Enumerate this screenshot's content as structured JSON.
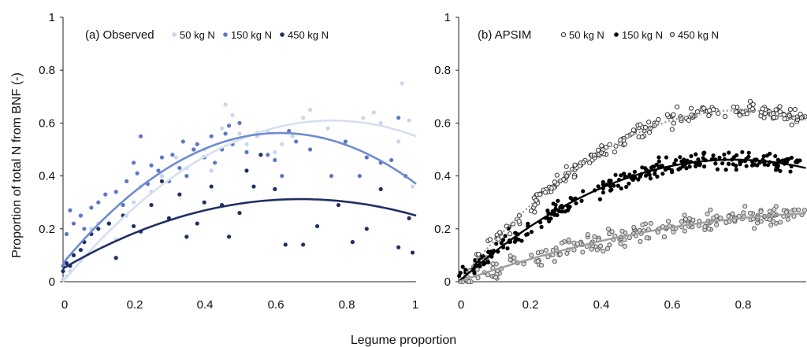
{
  "figure": {
    "xlabel": "Legume proportion",
    "ylabel": "Proportion of total N from BNF (-)"
  },
  "chart_data": [
    {
      "type": "scatter",
      "title": "(a) Observed",
      "xlabel": "Legume proportion",
      "ylabel": "Proportion of total N from BNF (-)",
      "xlim": [
        0,
        1
      ],
      "ylim": [
        0,
        1
      ],
      "x_ticks": [
        "0",
        "0.2",
        "0.4",
        "0.6",
        "0.8",
        "1"
      ],
      "y_ticks": [
        "0",
        "0.2",
        "0.4",
        "0.6",
        "0.8",
        "1"
      ],
      "grid": false,
      "legend_position": "top",
      "series": [
        {
          "name": "50 kg N",
          "color": "#c9d6ee",
          "marker": "filled-dot",
          "trend": {
            "type": "polynomial-2",
            "coef": [
              0.0,
              1.6,
              -1.05
            ]
          },
          "points": [
            [
              0.0,
              0.01
            ],
            [
              0.01,
              0.02
            ],
            [
              0.02,
              0.04
            ],
            [
              0.05,
              0.08
            ],
            [
              0.08,
              0.2
            ],
            [
              0.1,
              0.22
            ],
            [
              0.15,
              0.16
            ],
            [
              0.18,
              0.25
            ],
            [
              0.2,
              0.3
            ],
            [
              0.22,
              0.36
            ],
            [
              0.25,
              0.34
            ],
            [
              0.28,
              0.4
            ],
            [
              0.3,
              0.38
            ],
            [
              0.32,
              0.47
            ],
            [
              0.35,
              0.43
            ],
            [
              0.4,
              0.5
            ],
            [
              0.42,
              0.42
            ],
            [
              0.45,
              0.58
            ],
            [
              0.46,
              0.67
            ],
            [
              0.48,
              0.63
            ],
            [
              0.5,
              0.56
            ],
            [
              0.52,
              0.52
            ],
            [
              0.55,
              0.55
            ],
            [
              0.58,
              0.57
            ],
            [
              0.6,
              0.49
            ],
            [
              0.62,
              0.52
            ],
            [
              0.65,
              0.55
            ],
            [
              0.68,
              0.62
            ],
            [
              0.7,
              0.65
            ],
            [
              0.75,
              0.58
            ],
            [
              0.8,
              0.52
            ],
            [
              0.85,
              0.62
            ],
            [
              0.88,
              0.64
            ],
            [
              0.9,
              0.6
            ],
            [
              0.95,
              0.53
            ],
            [
              0.96,
              0.75
            ],
            [
              0.98,
              0.61
            ],
            [
              0.99,
              0.36
            ]
          ]
        },
        {
          "name": "150 kg N",
          "color": "#5b78c4",
          "marker": "filled-dot",
          "trend": {
            "type": "polynomial-2",
            "coef": [
              0.07,
              1.6,
              -1.3
            ]
          },
          "points": [
            [
              0.0,
              0.06
            ],
            [
              0.01,
              0.18
            ],
            [
              0.02,
              0.27
            ],
            [
              0.03,
              0.22
            ],
            [
              0.05,
              0.25
            ],
            [
              0.06,
              0.2
            ],
            [
              0.08,
              0.28
            ],
            [
              0.1,
              0.3
            ],
            [
              0.12,
              0.33
            ],
            [
              0.13,
              0.22
            ],
            [
              0.15,
              0.34
            ],
            [
              0.17,
              0.29
            ],
            [
              0.18,
              0.38
            ],
            [
              0.2,
              0.45
            ],
            [
              0.21,
              0.41
            ],
            [
              0.22,
              0.55
            ],
            [
              0.24,
              0.37
            ],
            [
              0.25,
              0.44
            ],
            [
              0.27,
              0.42
            ],
            [
              0.28,
              0.47
            ],
            [
              0.3,
              0.38
            ],
            [
              0.31,
              0.48
            ],
            [
              0.33,
              0.43
            ],
            [
              0.34,
              0.53
            ],
            [
              0.35,
              0.4
            ],
            [
              0.37,
              0.5
            ],
            [
              0.38,
              0.52
            ],
            [
              0.4,
              0.47
            ],
            [
              0.42,
              0.55
            ],
            [
              0.43,
              0.45
            ],
            [
              0.45,
              0.5
            ],
            [
              0.46,
              0.56
            ],
            [
              0.47,
              0.59
            ],
            [
              0.48,
              0.52
            ],
            [
              0.5,
              0.6
            ],
            [
              0.52,
              0.49
            ],
            [
              0.55,
              0.56
            ],
            [
              0.58,
              0.48
            ],
            [
              0.6,
              0.46
            ],
            [
              0.62,
              0.4
            ],
            [
              0.64,
              0.57
            ],
            [
              0.66,
              0.53
            ],
            [
              0.7,
              0.5
            ],
            [
              0.76,
              0.4
            ],
            [
              0.8,
              0.53
            ],
            [
              0.84,
              0.4
            ],
            [
              0.86,
              0.47
            ],
            [
              0.9,
              0.45
            ],
            [
              0.93,
              0.46
            ],
            [
              0.95,
              0.62
            ],
            [
              0.97,
              0.4
            ]
          ]
        },
        {
          "name": "450 kg N",
          "color": "#1f2f63",
          "marker": "filled-dot",
          "trend": {
            "type": "polynomial-2",
            "coef": [
              0.05,
              0.78,
              -0.58
            ]
          },
          "points": [
            [
              0.0,
              0.04
            ],
            [
              0.01,
              0.07
            ],
            [
              0.02,
              0.06
            ],
            [
              0.03,
              0.1
            ],
            [
              0.05,
              0.12
            ],
            [
              0.06,
              0.15
            ],
            [
              0.08,
              0.18
            ],
            [
              0.1,
              0.2
            ],
            [
              0.13,
              0.22
            ],
            [
              0.15,
              0.09
            ],
            [
              0.17,
              0.25
            ],
            [
              0.2,
              0.21
            ],
            [
              0.22,
              0.19
            ],
            [
              0.25,
              0.29
            ],
            [
              0.28,
              0.38
            ],
            [
              0.3,
              0.24
            ],
            [
              0.33,
              0.33
            ],
            [
              0.35,
              0.17
            ],
            [
              0.38,
              0.22
            ],
            [
              0.4,
              0.3
            ],
            [
              0.42,
              0.36
            ],
            [
              0.45,
              0.29
            ],
            [
              0.47,
              0.17
            ],
            [
              0.5,
              0.26
            ],
            [
              0.52,
              0.42
            ],
            [
              0.54,
              0.36
            ],
            [
              0.56,
              0.48
            ],
            [
              0.6,
              0.35
            ],
            [
              0.63,
              0.14
            ],
            [
              0.68,
              0.14
            ],
            [
              0.72,
              0.21
            ],
            [
              0.78,
              0.29
            ],
            [
              0.82,
              0.15
            ],
            [
              0.86,
              0.2
            ],
            [
              0.9,
              0.35
            ],
            [
              0.95,
              0.13
            ],
            [
              0.98,
              0.24
            ],
            [
              0.99,
              0.11
            ]
          ]
        }
      ]
    },
    {
      "type": "scatter",
      "title": "(b) APSIM",
      "xlabel": "Legume proportion",
      "ylabel": "",
      "xlim": [
        0,
        1
      ],
      "ylim": [
        0,
        1
      ],
      "x_ticks": [
        "0",
        "0.2",
        "0.4",
        "0.6",
        "0.8"
      ],
      "y_ticks": [
        "0",
        "0.2",
        "0.4",
        "0.6",
        "0.8",
        "1"
      ],
      "grid": false,
      "legend_position": "top",
      "series": [
        {
          "name": "50 kg N",
          "color": "#8a8a8a",
          "marker": "open-circle",
          "trend": {
            "type": "polynomial-2",
            "coef": [
              0.0,
              1.65,
              -1.05
            ],
            "style": "dotted"
          },
          "generator": {
            "n": 230,
            "noise": 0.03,
            "seed": 11
          }
        },
        {
          "name": "150 kg N",
          "color": "#000000",
          "marker": "filled-dot",
          "trend": {
            "type": "polynomial-2",
            "coef": [
              0.0,
              1.2,
              -0.78
            ],
            "style": "solid"
          },
          "generator": {
            "n": 260,
            "noise": 0.035,
            "seed": 23
          }
        },
        {
          "name": "450 kg N",
          "color": "#9a9a9a",
          "marker": "gray-open-circle",
          "trend": {
            "type": "polynomial-2",
            "coef": [
              0.0,
              0.47,
              -0.21
            ],
            "style": "solid"
          },
          "generator": {
            "n": 230,
            "noise": 0.035,
            "seed": 37
          }
        }
      ]
    }
  ]
}
